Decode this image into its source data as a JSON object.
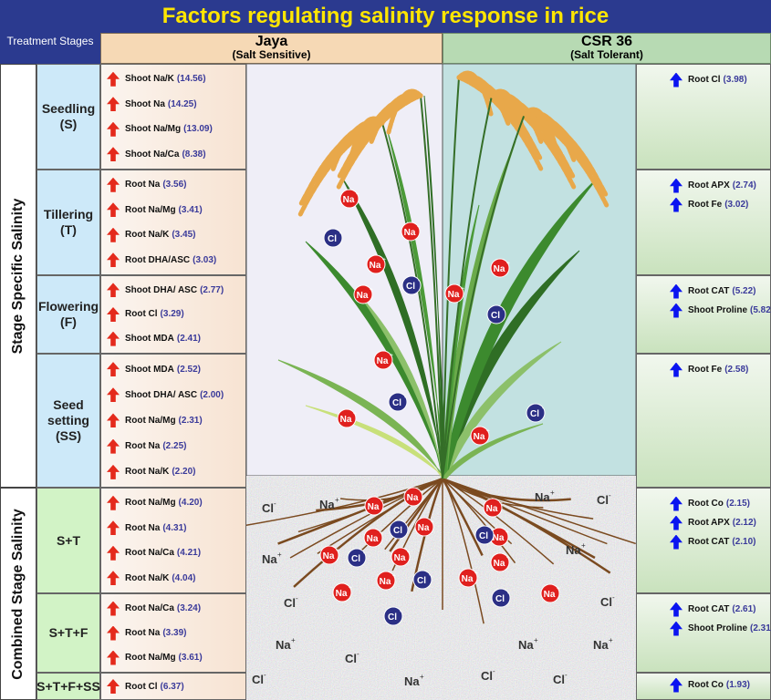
{
  "title": "Factors regulating salinity response in rice",
  "treatment_stages_label": "Treatment Stages",
  "jaya": {
    "name": "Jaya",
    "sub": "(Salt Sensitive)"
  },
  "csr": {
    "name": "CSR 36",
    "sub": "(Salt Tolerant)"
  },
  "stage_specific_label": "Stage Specific Salinity",
  "combined_stage_label": "Combined Stage Salinity",
  "colors": {
    "title_bg": "#2b3a8f",
    "title_text": "#ffe600",
    "up_jaya": "#e42a1c",
    "up_csr": "#0a14f0",
    "value_text": "#3a3a9a"
  },
  "stages": [
    {
      "label": "Seedling",
      "abbr": "(S)",
      "jaya": [
        [
          "Shoot Na/K",
          "(14.56)"
        ],
        [
          "Shoot Na",
          "(14.25)"
        ],
        [
          "Shoot Na/Mg",
          "(13.09)"
        ],
        [
          "Shoot Na/Ca",
          "(8.38)"
        ]
      ],
      "csr": [
        [
          "Root Cl",
          "(3.98)"
        ]
      ]
    },
    {
      "label": "Tillering",
      "abbr": "(T)",
      "jaya": [
        [
          "Root Na",
          "(3.56)"
        ],
        [
          "Root Na/Mg",
          "(3.41)"
        ],
        [
          "Root Na/K",
          "(3.45)"
        ],
        [
          "Root DHA/ASC",
          "(3.03)"
        ]
      ],
      "csr": [
        [
          "Root APX",
          "(2.74)"
        ],
        [
          "Root Fe",
          "(3.02)"
        ]
      ]
    },
    {
      "label": "Flowering",
      "abbr": "(F)",
      "jaya": [
        [
          "Shoot DHA/ ASC",
          "(2.77)"
        ],
        [
          "Root Cl",
          "(3.29)"
        ],
        [
          "Shoot MDA",
          "(2.41)"
        ]
      ],
      "csr": [
        [
          "Root CAT",
          "(5.22)"
        ],
        [
          "Shoot Proline",
          "(5.82)"
        ]
      ]
    },
    {
      "label": "Seed setting",
      "abbr": "(SS)",
      "jaya": [
        [
          "Shoot MDA",
          "(2.52)"
        ],
        [
          "Shoot DHA/ ASC",
          "(2.00)"
        ],
        [
          "Root Na/Mg",
          "(2.31)"
        ],
        [
          "Root Na",
          "(2.25)"
        ],
        [
          "Root Na/K",
          "(2.20)"
        ]
      ],
      "csr": [
        [
          "Root Fe",
          "(2.58)"
        ]
      ]
    },
    {
      "label": "S+T",
      "abbr": "",
      "jaya": [
        [
          "Root Na/Mg",
          "(4.20)"
        ],
        [
          "Root Na",
          "(4.31)"
        ],
        [
          "Root Na/Ca",
          "(4.21)"
        ],
        [
          "Root Na/K",
          "(4.04)"
        ]
      ],
      "csr": [
        [
          "Root Co",
          "(2.15)"
        ],
        [
          "Root APX",
          "(2.12)"
        ],
        [
          "Root CAT",
          "(2.10)"
        ]
      ]
    },
    {
      "label": "S+T+F",
      "abbr": "",
      "jaya": [
        [
          "Root Na/Ca",
          "(3.24)"
        ],
        [
          "Root Na",
          "(3.39)"
        ],
        [
          "Root Na/Mg",
          "(3.61)"
        ]
      ],
      "csr": [
        [
          "Root CAT",
          "(2.61)"
        ],
        [
          "Shoot Proline",
          "(2.31)"
        ]
      ]
    },
    {
      "label": "S+T+F+SS",
      "abbr": "",
      "jaya": [
        [
          "Root Cl",
          "(6.37)"
        ]
      ],
      "csr": [
        [
          "Root Co",
          "(1.93)"
        ]
      ]
    }
  ],
  "ions": {
    "na": "Na",
    "na_charge": "+",
    "cl": "Cl",
    "cl_charge": "-"
  }
}
